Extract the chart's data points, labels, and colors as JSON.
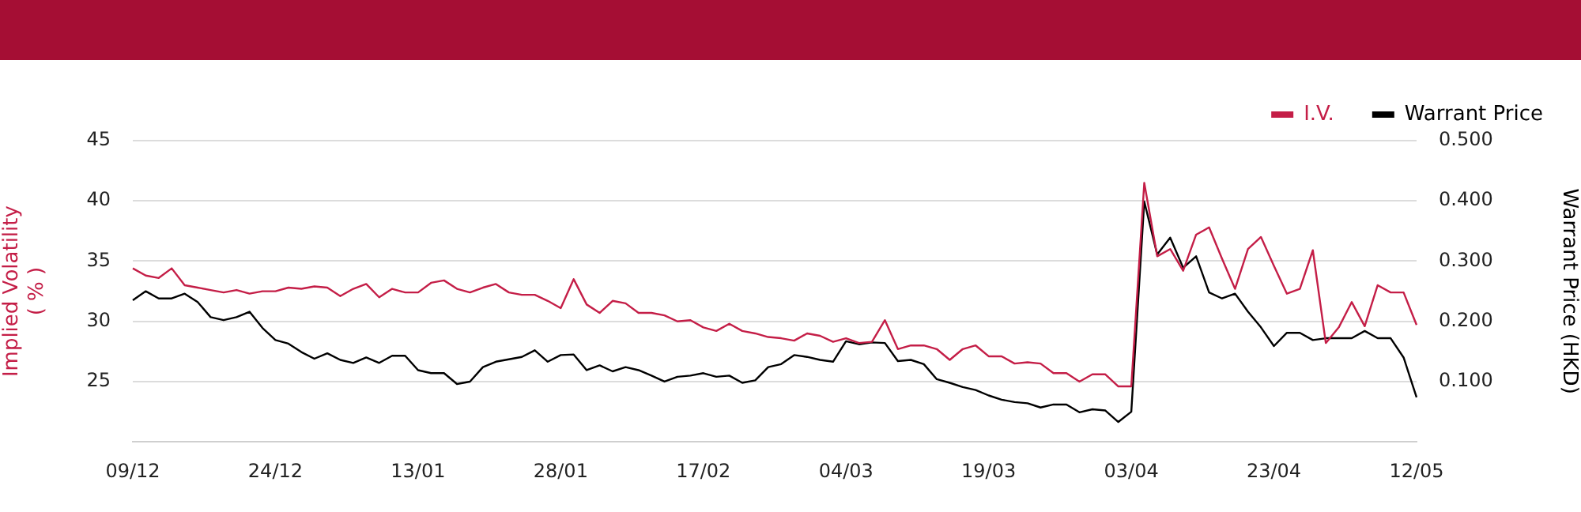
{
  "chart_data": {
    "type": "line",
    "xlabel": null,
    "ylabel": "Implied Volatility\n( % )",
    "y2label": "Warrant Price (HKD)",
    "categories": [
      "09/12",
      null,
      null,
      null,
      null,
      null,
      null,
      null,
      null,
      null,
      null,
      "24/12",
      null,
      null,
      null,
      null,
      null,
      null,
      null,
      null,
      null,
      null,
      "13/01",
      null,
      null,
      null,
      null,
      null,
      null,
      null,
      null,
      null,
      null,
      "28/01",
      null,
      null,
      null,
      null,
      null,
      null,
      null,
      null,
      null,
      null,
      "17/02",
      null,
      null,
      null,
      null,
      null,
      null,
      null,
      null,
      null,
      null,
      "04/03",
      null,
      null,
      null,
      null,
      null,
      null,
      null,
      null,
      null,
      null,
      "19/03",
      null,
      null,
      null,
      null,
      null,
      null,
      null,
      null,
      null,
      null,
      "03/04",
      null,
      null,
      null,
      null,
      null,
      null,
      null,
      null,
      null,
      null,
      "23/04",
      null,
      null,
      null,
      null,
      null,
      null,
      null,
      null,
      null,
      null,
      "12/05"
    ],
    "series": [
      {
        "name": "I.V.",
        "color": "#c41e47",
        "values": [
          34.4,
          33.8,
          33.6,
          34.4,
          33.0,
          32.8,
          32.6,
          32.4,
          32.6,
          32.3,
          32.5,
          32.5,
          32.8,
          32.7,
          32.9,
          32.8,
          32.1,
          32.7,
          33.1,
          32.0,
          32.7,
          32.4,
          32.4,
          33.2,
          33.4,
          32.7,
          32.4,
          32.8,
          33.1,
          32.4,
          32.2,
          32.2,
          31.7,
          31.1,
          33.5,
          31.4,
          30.7,
          31.7,
          31.5,
          30.7,
          30.7,
          30.5,
          30.0,
          30.1,
          29.5,
          29.2,
          29.8,
          29.2,
          29.0,
          28.7,
          28.6,
          28.4,
          29.0,
          28.8,
          28.3,
          28.6,
          28.2,
          28.3,
          30.1,
          27.7,
          28.0,
          28.0,
          27.7,
          26.8,
          27.7,
          28.0,
          27.1,
          27.1,
          26.5,
          26.6,
          26.5,
          25.7,
          25.7,
          25.0,
          25.6,
          25.6,
          24.6,
          24.6,
          41.5,
          35.4,
          36.0,
          34.2,
          37.2,
          37.8,
          35.2,
          32.7,
          36.0,
          37.0,
          34.6,
          32.3,
          32.7,
          35.9,
          28.2,
          29.5,
          31.6,
          29.6,
          33.0,
          32.4,
          32.4,
          29.7
        ]
      },
      {
        "name": "Warrant Price",
        "color": "#000000",
        "axis": "y2",
        "values": [
          0.235,
          0.25,
          0.238,
          0.238,
          0.246,
          0.232,
          0.207,
          0.202,
          0.207,
          0.216,
          0.189,
          0.169,
          0.163,
          0.149,
          0.138,
          0.147,
          0.136,
          0.131,
          0.14,
          0.131,
          0.143,
          0.143,
          0.119,
          0.114,
          0.114,
          0.096,
          0.1,
          0.124,
          0.133,
          0.137,
          0.141,
          0.152,
          0.133,
          0.144,
          0.145,
          0.119,
          0.127,
          0.117,
          0.124,
          0.119,
          0.11,
          0.1,
          0.108,
          0.11,
          0.114,
          0.108,
          0.11,
          0.098,
          0.102,
          0.124,
          0.129,
          0.144,
          0.141,
          0.136,
          0.133,
          0.167,
          0.162,
          0.165,
          0.164,
          0.134,
          0.136,
          0.129,
          0.104,
          0.098,
          0.091,
          0.086,
          0.077,
          0.07,
          0.066,
          0.064,
          0.057,
          0.062,
          0.062,
          0.049,
          0.054,
          0.052,
          0.033,
          0.05,
          0.399,
          0.311,
          0.339,
          0.289,
          0.308,
          0.248,
          0.238,
          0.246,
          0.216,
          0.19,
          0.159,
          0.181,
          0.181,
          0.169,
          0.172,
          0.172,
          0.172,
          0.184,
          0.172,
          0.172,
          0.14,
          0.074
        ]
      }
    ],
    "ylim": [
      20,
      45
    ],
    "yticks": [
      25,
      30,
      35,
      40,
      45
    ],
    "y2lim": [
      0,
      0.5
    ],
    "y2ticks": [
      {
        "value": 0.1,
        "label": "0.100"
      },
      {
        "value": 0.2,
        "label": "0.200"
      },
      {
        "value": 0.3,
        "label": "0.300"
      },
      {
        "value": 0.4,
        "label": "0.400"
      },
      {
        "value": 0.5,
        "label": "0.500"
      }
    ],
    "grid": "y",
    "legend": "top right",
    "marker": "none",
    "line_style": "solid"
  }
}
